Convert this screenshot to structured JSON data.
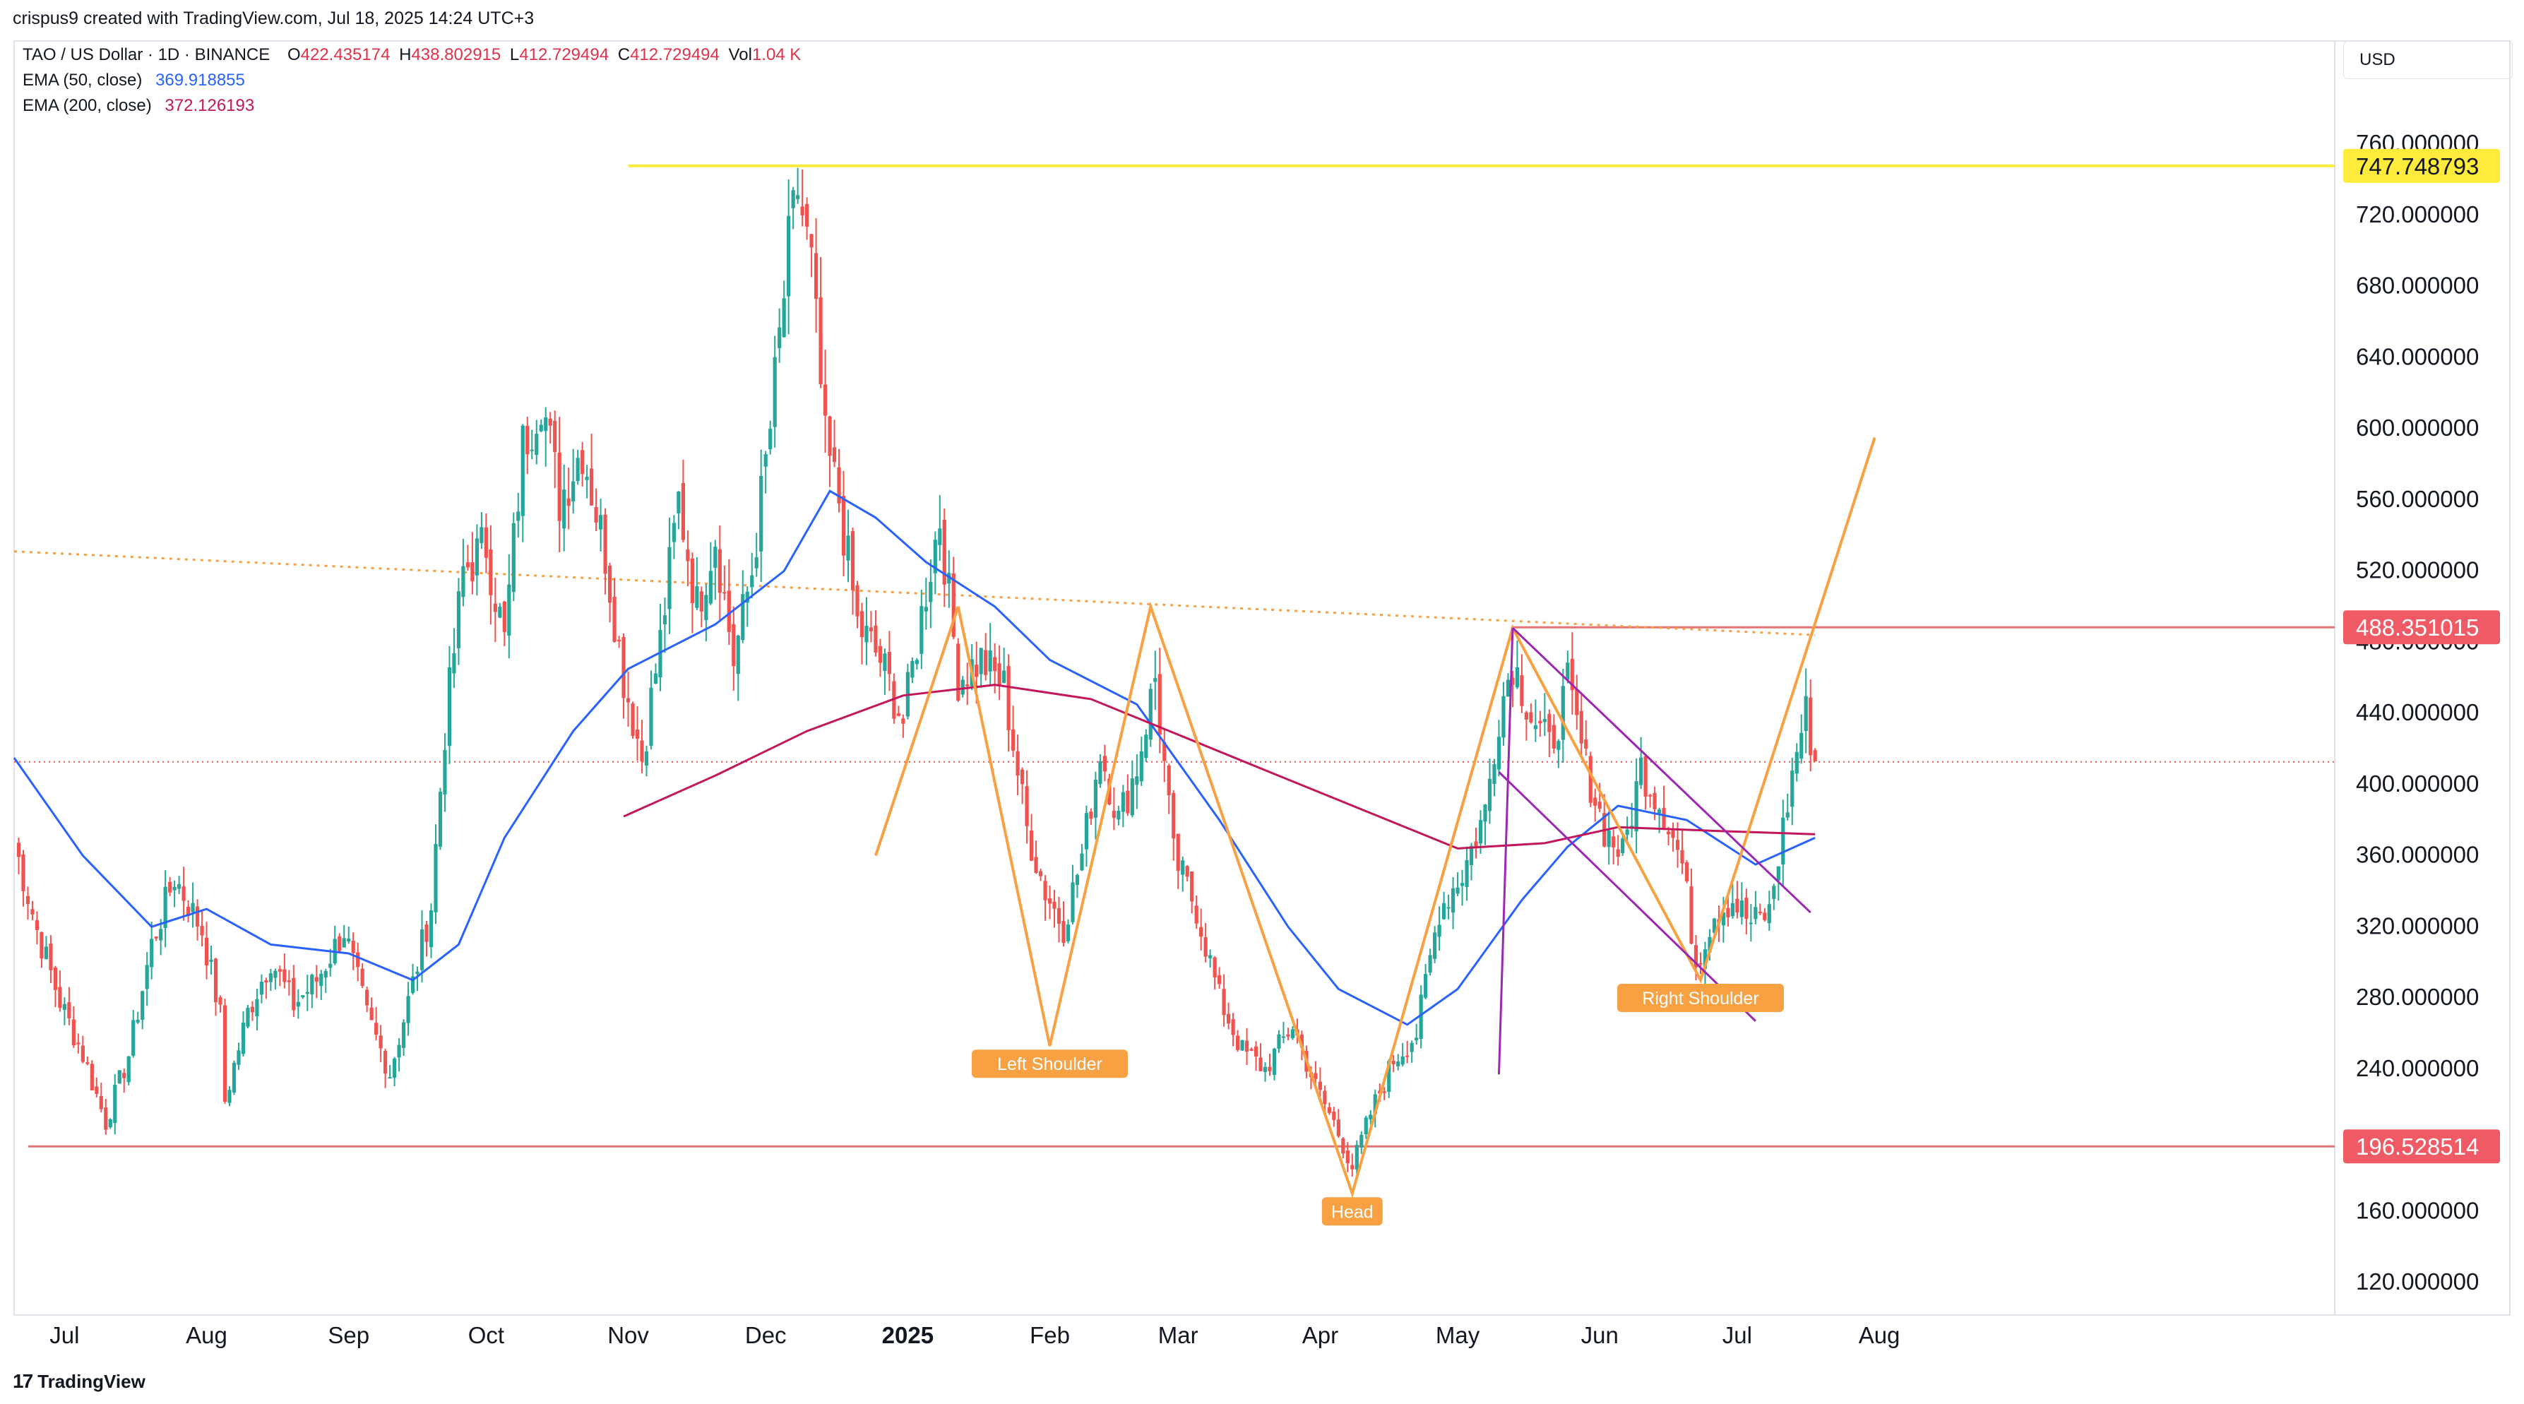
{
  "header": {
    "created_by": "crispus9 created with TradingView.com, Jul 18, 2025 14:24 UTC+3"
  },
  "legend": {
    "symbol": "TAO / US Dollar · 1D · BINANCE",
    "ohlcv": {
      "o_label": "O",
      "o": "422.435174",
      "h_label": "H",
      "h": "438.802915",
      "l_label": "L",
      "l": "412.729494",
      "c_label": "C",
      "c": "412.729494",
      "vol_label": "Vol",
      "vol": "1.04 K"
    },
    "ema50": {
      "label": "EMA (50, close)",
      "value": "369.918855"
    },
    "ema200": {
      "label": "EMA (200, close)",
      "value": "372.126193"
    }
  },
  "currency_button": "USD",
  "footer": {
    "brand": "TradingView"
  },
  "colors": {
    "up": "#26a69a",
    "down": "#ef5350",
    "ema50": "#2962ff",
    "ema200": "#c2185b",
    "pattern": "#f7a142",
    "channel": "#9c27b0",
    "resistance": "#ffeb3b",
    "level": "#e57373"
  },
  "chart_data": {
    "type": "candlestick",
    "x_unit": "time",
    "time_labels": [
      {
        "label": "Jul",
        "date": "2024-07-01"
      },
      {
        "label": "Aug",
        "date": "2024-08-01"
      },
      {
        "label": "Sep",
        "date": "2024-09-01"
      },
      {
        "label": "Oct",
        "date": "2024-10-01"
      },
      {
        "label": "Nov",
        "date": "2024-11-01"
      },
      {
        "label": "Dec",
        "date": "2024-12-01"
      },
      {
        "label": "2025",
        "date": "2025-01-01",
        "bold": true
      },
      {
        "label": "Feb",
        "date": "2025-02-01"
      },
      {
        "label": "Mar",
        "date": "2025-03-01"
      },
      {
        "label": "Apr",
        "date": "2025-04-01"
      },
      {
        "label": "May",
        "date": "2025-05-01"
      },
      {
        "label": "Jun",
        "date": "2025-06-01"
      },
      {
        "label": "Jul",
        "date": "2025-07-01"
      },
      {
        "label": "Aug",
        "date": "2025-08-01"
      }
    ],
    "y_ticks": [
      {
        "value": 760,
        "label": "760.000000"
      },
      {
        "value": 720,
        "label": "720.000000"
      },
      {
        "value": 680,
        "label": "680.000000"
      },
      {
        "value": 640,
        "label": "640.000000"
      },
      {
        "value": 600,
        "label": "600.000000"
      },
      {
        "value": 560,
        "label": "560.000000"
      },
      {
        "value": 520,
        "label": "520.000000"
      },
      {
        "value": 480,
        "label": "480.000000"
      },
      {
        "value": 440,
        "label": "440.000000"
      },
      {
        "value": 400,
        "label": "400.000000"
      },
      {
        "value": 360,
        "label": "360.000000"
      },
      {
        "value": 320,
        "label": "320.000000"
      },
      {
        "value": 280,
        "label": "280.000000"
      },
      {
        "value": 240,
        "label": "240.000000"
      },
      {
        "value": 160,
        "label": "160.000000"
      },
      {
        "value": 120,
        "label": "120.000000"
      }
    ],
    "ylim": [
      92,
      780
    ],
    "price_markers": [
      {
        "value": 747.748793,
        "label": "747.748793",
        "color": "#ffeb3b",
        "text_color": "#131722"
      },
      {
        "value": 488.351015,
        "label": "488.351015",
        "color": "#f05a64",
        "text_color": "#ffffff"
      },
      {
        "value": 196.528514,
        "label": "196.528514",
        "color": "#f05a64",
        "text_color": "#ffffff"
      }
    ],
    "current_price": 412.729494,
    "price_path": [
      [
        "2024-06-20",
        368
      ],
      [
        "2024-06-25",
        318
      ],
      [
        "2024-06-30",
        278
      ],
      [
        "2024-07-05",
        248
      ],
      [
        "2024-07-10",
        210
      ],
      [
        "2024-07-15",
        248
      ],
      [
        "2024-07-20",
        310
      ],
      [
        "2024-07-25",
        348
      ],
      [
        "2024-07-31",
        318
      ],
      [
        "2024-08-04",
        270
      ],
      [
        "2024-08-05",
        222
      ],
      [
        "2024-08-10",
        272
      ],
      [
        "2024-08-15",
        302
      ],
      [
        "2024-08-20",
        276
      ],
      [
        "2024-08-25",
        290
      ],
      [
        "2024-08-31",
        318
      ],
      [
        "2024-09-05",
        270
      ],
      [
        "2024-09-10",
        238
      ],
      [
        "2024-09-15",
        288
      ],
      [
        "2024-09-19",
        332
      ],
      [
        "2024-09-22",
        430
      ],
      [
        "2024-09-26",
        520
      ],
      [
        "2024-10-01",
        535
      ],
      [
        "2024-10-05",
        480
      ],
      [
        "2024-10-09",
        590
      ],
      [
        "2024-10-13",
        620
      ],
      [
        "2024-10-17",
        560
      ],
      [
        "2024-10-22",
        590
      ],
      [
        "2024-10-27",
        530
      ],
      [
        "2024-10-31",
        460
      ],
      [
        "2024-11-04",
        415
      ],
      [
        "2024-11-08",
        480
      ],
      [
        "2024-11-12",
        560
      ],
      [
        "2024-11-16",
        500
      ],
      [
        "2024-11-20",
        540
      ],
      [
        "2024-11-24",
        470
      ],
      [
        "2024-11-28",
        520
      ],
      [
        "2024-12-02",
        600
      ],
      [
        "2024-12-06",
        700
      ],
      [
        "2024-12-08",
        735
      ],
      [
        "2024-12-11",
        690
      ],
      [
        "2024-12-14",
        590
      ],
      [
        "2024-12-17",
        560
      ],
      [
        "2024-12-21",
        490
      ],
      [
        "2024-12-26",
        470
      ],
      [
        "2024-12-31",
        435
      ],
      [
        "2025-01-05",
        510
      ],
      [
        "2025-01-08",
        550
      ],
      [
        "2025-01-12",
        460
      ],
      [
        "2025-01-17",
        470
      ],
      [
        "2025-01-22",
        455
      ],
      [
        "2025-01-27",
        375
      ],
      [
        "2025-01-31",
        340
      ],
      [
        "2025-02-04",
        320
      ],
      [
        "2025-02-08",
        360
      ],
      [
        "2025-02-12",
        420
      ],
      [
        "2025-02-16",
        380
      ],
      [
        "2025-02-20",
        410
      ],
      [
        "2025-02-24",
        460
      ],
      [
        "2025-02-28",
        360
      ],
      [
        "2025-03-05",
        330
      ],
      [
        "2025-03-10",
        280
      ],
      [
        "2025-03-15",
        250
      ],
      [
        "2025-03-20",
        240
      ],
      [
        "2025-03-26",
        265
      ],
      [
        "2025-03-31",
        230
      ],
      [
        "2025-04-04",
        210
      ],
      [
        "2025-04-08",
        185
      ],
      [
        "2025-04-12",
        215
      ],
      [
        "2025-04-17",
        245
      ],
      [
        "2025-04-22",
        260
      ],
      [
        "2025-04-27",
        330
      ],
      [
        "2025-05-02",
        350
      ],
      [
        "2025-05-07",
        385
      ],
      [
        "2025-05-10",
        440
      ],
      [
        "2025-05-13",
        470
      ],
      [
        "2025-05-17",
        440
      ],
      [
        "2025-05-21",
        420
      ],
      [
        "2025-05-25",
        455
      ],
      [
        "2025-05-29",
        410
      ],
      [
        "2025-06-02",
        375
      ],
      [
        "2025-06-06",
        360
      ],
      [
        "2025-06-10",
        410
      ],
      [
        "2025-06-15",
        385
      ],
      [
        "2025-06-19",
        355
      ],
      [
        "2025-06-22",
        300
      ],
      [
        "2025-06-26",
        328
      ],
      [
        "2025-06-30",
        335
      ],
      [
        "2025-07-04",
        322
      ],
      [
        "2025-07-08",
        328
      ],
      [
        "2025-07-11",
        375
      ],
      [
        "2025-07-14",
        420
      ],
      [
        "2025-07-16",
        440
      ],
      [
        "2025-07-18",
        413
      ]
    ],
    "series": [
      {
        "name": "EMA (50, close)",
        "color": "#2962ff",
        "points": [
          [
            "2024-06-20",
            415
          ],
          [
            "2024-07-05",
            360
          ],
          [
            "2024-07-20",
            320
          ],
          [
            "2024-08-01",
            330
          ],
          [
            "2024-08-15",
            310
          ],
          [
            "2024-09-01",
            305
          ],
          [
            "2024-09-15",
            290
          ],
          [
            "2024-09-25",
            310
          ],
          [
            "2024-10-05",
            370
          ],
          [
            "2024-10-20",
            430
          ],
          [
            "2024-11-01",
            465
          ],
          [
            "2024-11-20",
            490
          ],
          [
            "2024-12-05",
            520
          ],
          [
            "2024-12-15",
            565
          ],
          [
            "2024-12-25",
            550
          ],
          [
            "2025-01-05",
            525
          ],
          [
            "2025-01-20",
            500
          ],
          [
            "2025-02-01",
            470
          ],
          [
            "2025-02-20",
            445
          ],
          [
            "2025-03-10",
            380
          ],
          [
            "2025-03-25",
            320
          ],
          [
            "2025-04-05",
            285
          ],
          [
            "2025-04-20",
            265
          ],
          [
            "2025-05-01",
            285
          ],
          [
            "2025-05-15",
            335
          ],
          [
            "2025-05-25",
            365
          ],
          [
            "2025-06-05",
            388
          ],
          [
            "2025-06-20",
            380
          ],
          [
            "2025-07-05",
            355
          ],
          [
            "2025-07-18",
            370
          ]
        ]
      },
      {
        "name": "EMA (200, close)",
        "color": "#c2185b",
        "points": [
          [
            "2024-10-31",
            382
          ],
          [
            "2024-11-20",
            405
          ],
          [
            "2024-12-10",
            430
          ],
          [
            "2024-12-31",
            450
          ],
          [
            "2025-01-20",
            456
          ],
          [
            "2025-02-10",
            448
          ],
          [
            "2025-03-01",
            428
          ],
          [
            "2025-03-20",
            408
          ],
          [
            "2025-04-10",
            386
          ],
          [
            "2025-05-01",
            364
          ],
          [
            "2025-05-20",
            367
          ],
          [
            "2025-06-05",
            376
          ],
          [
            "2025-06-25",
            374
          ],
          [
            "2025-07-18",
            372
          ]
        ]
      }
    ],
    "annotations": {
      "resistance_line": {
        "value": 747.748793,
        "from": "2024-11-01",
        "to": "2025-07-31"
      },
      "support_line": {
        "value": 196.528514,
        "from": "2024-06-21",
        "to": "2025-08-06"
      },
      "level_488_line": {
        "value": 488.351015,
        "from": "2025-05-13",
        "to": "2025-08-06"
      },
      "dotted_neckline": [
        [
          "2024-06-20",
          531
        ],
        [
          "2025-07-18",
          484
        ]
      ],
      "current_price_line": {
        "value": 412.729494,
        "from": "2024-06-20",
        "to": "2025-08-04"
      },
      "head_and_shoulders": [
        [
          "2025-01-12",
          500
        ],
        [
          "2025-02-01",
          253
        ],
        [
          "2025-02-23",
          500
        ],
        [
          "2025-04-08",
          170
        ],
        [
          "2025-05-13",
          488
        ],
        [
          "2025-06-23",
          290
        ],
        [
          "2025-07-31",
          595
        ]
      ],
      "left_shoulder_bar": [
        [
          "2024-12-25",
          360
        ],
        [
          "2025-01-12",
          500
        ]
      ],
      "channel_upper": [
        [
          "2025-05-13",
          488
        ],
        [
          "2025-07-17",
          328
        ]
      ],
      "channel_lower": [
        [
          "2025-05-10",
          407
        ],
        [
          "2025-07-05",
          267
        ]
      ],
      "channel_stem": [
        [
          "2025-05-10",
          237
        ],
        [
          "2025-05-13",
          488
        ]
      ],
      "labels": [
        {
          "text": "Left Shoulder",
          "date": "2025-02-01",
          "value": 243
        },
        {
          "text": "Head",
          "date": "2025-04-08",
          "value": 160
        },
        {
          "text": "Right Shoulder",
          "date": "2025-06-23",
          "value": 280
        }
      ]
    }
  }
}
